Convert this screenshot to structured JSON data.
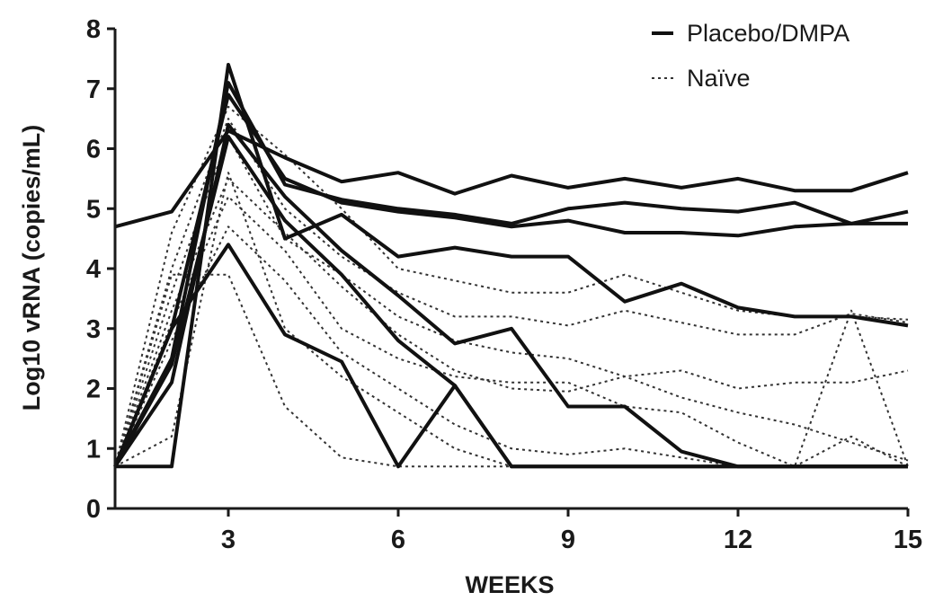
{
  "chart_data": {
    "type": "line",
    "title": "",
    "xlabel": "WEEKS",
    "ylabel": "Log10 vRNA (copies/mL)",
    "xlim": [
      1,
      15
    ],
    "ylim": [
      0,
      8
    ],
    "x_ticks": [
      3,
      6,
      9,
      12,
      15
    ],
    "y_ticks": [
      0,
      1,
      2,
      3,
      4,
      5,
      6,
      7,
      8
    ],
    "grid": false,
    "legend_position": "top-right",
    "legend": [
      {
        "label": "Placebo/DMPA",
        "style": "solid"
      },
      {
        "label": "Naïve",
        "style": "dotted"
      }
    ],
    "colors": {
      "solid": "#111111",
      "dotted": "#333333",
      "axis": "#1a1a1a"
    },
    "series": [
      {
        "group": "Placebo/DMPA",
        "points": [
          [
            1,
            4.7
          ],
          [
            2,
            4.95
          ],
          [
            3,
            6.3
          ],
          [
            4,
            5.85
          ],
          [
            5,
            5.45
          ],
          [
            6,
            5.6
          ],
          [
            7,
            5.25
          ],
          [
            8,
            5.55
          ],
          [
            9,
            5.35
          ],
          [
            10,
            5.5
          ],
          [
            11,
            5.35
          ],
          [
            12,
            5.5
          ],
          [
            13,
            5.3
          ],
          [
            14,
            5.3
          ],
          [
            15,
            5.6
          ]
        ]
      },
      {
        "group": "Placebo/DMPA",
        "points": [
          [
            1,
            0.7
          ],
          [
            2,
            2.5
          ],
          [
            3,
            7.1
          ],
          [
            4,
            5.4
          ],
          [
            5,
            5.15
          ],
          [
            6,
            5.0
          ],
          [
            7,
            4.9
          ],
          [
            8,
            4.75
          ],
          [
            9,
            5.0
          ],
          [
            10,
            5.1
          ],
          [
            11,
            5.0
          ],
          [
            12,
            4.95
          ],
          [
            13,
            5.1
          ],
          [
            14,
            4.75
          ],
          [
            15,
            4.75
          ]
        ]
      },
      {
        "group": "Placebo/DMPA",
        "points": [
          [
            1,
            0.7
          ],
          [
            2,
            3.0
          ],
          [
            3,
            6.9
          ],
          [
            4,
            5.5
          ],
          [
            5,
            5.1
          ],
          [
            6,
            4.95
          ],
          [
            7,
            4.85
          ],
          [
            8,
            4.7
          ],
          [
            9,
            4.8
          ],
          [
            10,
            4.6
          ],
          [
            11,
            4.6
          ],
          [
            12,
            4.55
          ],
          [
            13,
            4.7
          ],
          [
            14,
            4.75
          ],
          [
            15,
            4.95
          ]
        ]
      },
      {
        "group": "Placebo/DMPA",
        "points": [
          [
            1,
            0.7
          ],
          [
            2,
            0.7
          ],
          [
            3,
            7.4
          ],
          [
            4,
            4.5
          ],
          [
            5,
            4.9
          ],
          [
            6,
            4.2
          ],
          [
            7,
            4.35
          ],
          [
            8,
            4.2
          ],
          [
            9,
            4.2
          ],
          [
            10,
            3.45
          ],
          [
            11,
            3.75
          ],
          [
            12,
            3.35
          ],
          [
            13,
            3.2
          ],
          [
            14,
            3.2
          ],
          [
            15,
            3.05
          ]
        ]
      },
      {
        "group": "Placebo/DMPA",
        "points": [
          [
            1,
            0.7
          ],
          [
            2,
            2.1
          ],
          [
            3,
            6.4
          ],
          [
            4,
            5.2
          ],
          [
            5,
            4.3
          ],
          [
            6,
            3.55
          ],
          [
            7,
            2.75
          ],
          [
            8,
            3.0
          ],
          [
            9,
            1.7
          ],
          [
            10,
            1.7
          ],
          [
            11,
            0.95
          ],
          [
            12,
            0.7
          ],
          [
            13,
            0.7
          ],
          [
            14,
            0.7
          ],
          [
            15,
            0.7
          ]
        ]
      },
      {
        "group": "Placebo/DMPA",
        "points": [
          [
            1,
            0.7
          ],
          [
            2,
            2.4
          ],
          [
            3,
            6.2
          ],
          [
            4,
            4.8
          ],
          [
            5,
            3.9
          ],
          [
            6,
            2.8
          ],
          [
            7,
            2.05
          ],
          [
            8,
            0.7
          ],
          [
            9,
            0.7
          ],
          [
            10,
            0.7
          ],
          [
            11,
            0.7
          ],
          [
            12,
            0.7
          ],
          [
            13,
            0.7
          ],
          [
            14,
            0.7
          ],
          [
            15,
            0.7
          ]
        ]
      },
      {
        "group": "Placebo/DMPA",
        "points": [
          [
            1,
            0.7
          ],
          [
            2,
            3.0
          ],
          [
            3,
            4.4
          ],
          [
            4,
            2.9
          ],
          [
            5,
            2.45
          ],
          [
            6,
            0.7
          ],
          [
            7,
            2.05
          ],
          [
            8,
            0.7
          ],
          [
            9,
            0.7
          ],
          [
            10,
            0.7
          ],
          [
            11,
            0.7
          ],
          [
            12,
            0.7
          ],
          [
            13,
            0.7
          ],
          [
            14,
            0.7
          ],
          [
            15,
            0.7
          ]
        ]
      },
      {
        "group": "Naïve",
        "points": [
          [
            1,
            0.7
          ],
          [
            2,
            4.6
          ],
          [
            3,
            6.7
          ],
          [
            4,
            5.9
          ],
          [
            5,
            5.0
          ],
          [
            6,
            4.0
          ],
          [
            7,
            3.8
          ],
          [
            8,
            3.6
          ],
          [
            9,
            3.6
          ],
          [
            10,
            3.9
          ],
          [
            11,
            3.6
          ],
          [
            12,
            3.3
          ],
          [
            13,
            3.2
          ],
          [
            14,
            3.2
          ],
          [
            15,
            3.15
          ]
        ]
      },
      {
        "group": "Naïve",
        "points": [
          [
            1,
            0.7
          ],
          [
            2,
            4.0
          ],
          [
            3,
            6.5
          ],
          [
            4,
            5.0
          ],
          [
            5,
            4.2
          ],
          [
            6,
            3.6
          ],
          [
            7,
            3.2
          ],
          [
            8,
            3.2
          ],
          [
            9,
            3.05
          ],
          [
            10,
            3.3
          ],
          [
            11,
            3.1
          ],
          [
            12,
            2.9
          ],
          [
            13,
            2.9
          ],
          [
            14,
            3.25
          ],
          [
            15,
            3.1
          ]
        ]
      },
      {
        "group": "Naïve",
        "points": [
          [
            1,
            0.7
          ],
          [
            2,
            3.6
          ],
          [
            3,
            6.2
          ],
          [
            4,
            4.5
          ],
          [
            5,
            3.9
          ],
          [
            6,
            3.2
          ],
          [
            7,
            2.8
          ],
          [
            8,
            2.6
          ],
          [
            9,
            2.5
          ],
          [
            10,
            2.2
          ],
          [
            11,
            2.3
          ],
          [
            12,
            2.0
          ],
          [
            13,
            2.1
          ],
          [
            14,
            2.1
          ],
          [
            15,
            2.3
          ]
        ]
      },
      {
        "group": "Naïve",
        "points": [
          [
            1,
            0.7
          ],
          [
            2,
            3.3
          ],
          [
            3,
            5.5
          ],
          [
            4,
            4.6
          ],
          [
            5,
            3.7
          ],
          [
            6,
            2.9
          ],
          [
            7,
            2.3
          ],
          [
            8,
            2.0
          ],
          [
            9,
            1.95
          ],
          [
            10,
            2.2
          ],
          [
            11,
            1.85
          ],
          [
            12,
            1.6
          ],
          [
            13,
            1.4
          ],
          [
            14,
            1.1
          ],
          [
            15,
            0.8
          ]
        ]
      },
      {
        "group": "Naïve",
        "points": [
          [
            1,
            0.7
          ],
          [
            2,
            3.1
          ],
          [
            3,
            5.2
          ],
          [
            4,
            4.3
          ],
          [
            5,
            3.0
          ],
          [
            6,
            2.5
          ],
          [
            7,
            2.2
          ],
          [
            8,
            2.1
          ],
          [
            9,
            2.1
          ],
          [
            10,
            1.7
          ],
          [
            11,
            1.6
          ],
          [
            12,
            1.1
          ],
          [
            13,
            0.7
          ],
          [
            14,
            3.3
          ],
          [
            15,
            0.7
          ]
        ]
      },
      {
        "group": "Naïve",
        "points": [
          [
            1,
            0.7
          ],
          [
            2,
            2.8
          ],
          [
            3,
            4.7
          ],
          [
            4,
            3.8
          ],
          [
            5,
            2.6
          ],
          [
            6,
            2.0
          ],
          [
            7,
            1.4
          ],
          [
            8,
            1.0
          ],
          [
            9,
            0.9
          ],
          [
            10,
            1.0
          ],
          [
            11,
            0.85
          ],
          [
            12,
            0.7
          ],
          [
            13,
            0.7
          ],
          [
            14,
            0.7
          ],
          [
            15,
            0.7
          ]
        ]
      },
      {
        "group": "Naïve",
        "points": [
          [
            1,
            0.7
          ],
          [
            2,
            1.2
          ],
          [
            3,
            5.6
          ],
          [
            4,
            3.0
          ],
          [
            5,
            2.2
          ],
          [
            6,
            1.6
          ],
          [
            7,
            1.0
          ],
          [
            8,
            0.7
          ],
          [
            9,
            0.7
          ],
          [
            10,
            0.7
          ],
          [
            11,
            0.7
          ],
          [
            12,
            0.7
          ],
          [
            13,
            0.7
          ],
          [
            14,
            1.2
          ],
          [
            15,
            0.7
          ]
        ]
      },
      {
        "group": "Naïve",
        "points": [
          [
            1,
            0.7
          ],
          [
            2,
            3.9
          ],
          [
            3,
            3.9
          ],
          [
            4,
            1.7
          ],
          [
            5,
            0.85
          ],
          [
            6,
            0.7
          ],
          [
            7,
            0.7
          ],
          [
            8,
            0.7
          ],
          [
            9,
            0.7
          ],
          [
            10,
            0.7
          ],
          [
            11,
            0.7
          ],
          [
            12,
            0.7
          ],
          [
            13,
            0.7
          ],
          [
            14,
            0.7
          ],
          [
            15,
            0.7
          ]
        ]
      }
    ]
  }
}
